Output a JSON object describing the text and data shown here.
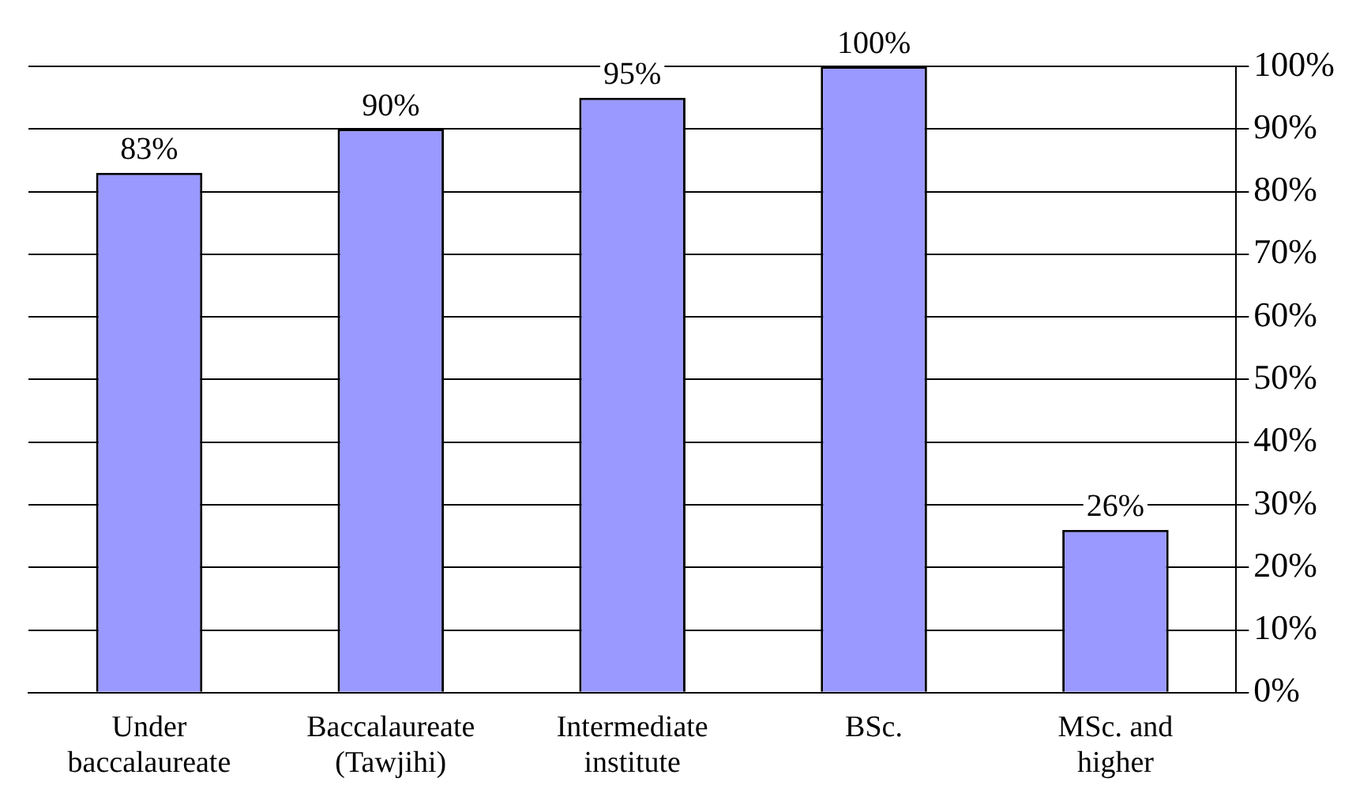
{
  "chart_data": {
    "type": "bar",
    "categories": [
      "Under baccalaureate",
      "Baccalaureate (Tawjihi)",
      "Intermediate institute",
      "BSc.",
      "MSc. and higher"
    ],
    "values": [
      83,
      90,
      95,
      100,
      26
    ],
    "value_labels": [
      "83%",
      "90%",
      "95%",
      "100%",
      "26%"
    ],
    "color": "#9999ff",
    "ylim": [
      0,
      100
    ],
    "yticks": [
      {
        "value": 0,
        "label": "0%"
      },
      {
        "value": 10,
        "label": "10%"
      },
      {
        "value": 20,
        "label": "20%"
      },
      {
        "value": 30,
        "label": "30%"
      },
      {
        "value": 40,
        "label": "40%"
      },
      {
        "value": 50,
        "label": "50%"
      },
      {
        "value": 60,
        "label": "60%"
      },
      {
        "value": 70,
        "label": "70%"
      },
      {
        "value": 80,
        "label": "80%"
      },
      {
        "value": 90,
        "label": "90%"
      },
      {
        "value": 100,
        "label": "100%"
      }
    ],
    "grid": "y",
    "legend": false
  }
}
